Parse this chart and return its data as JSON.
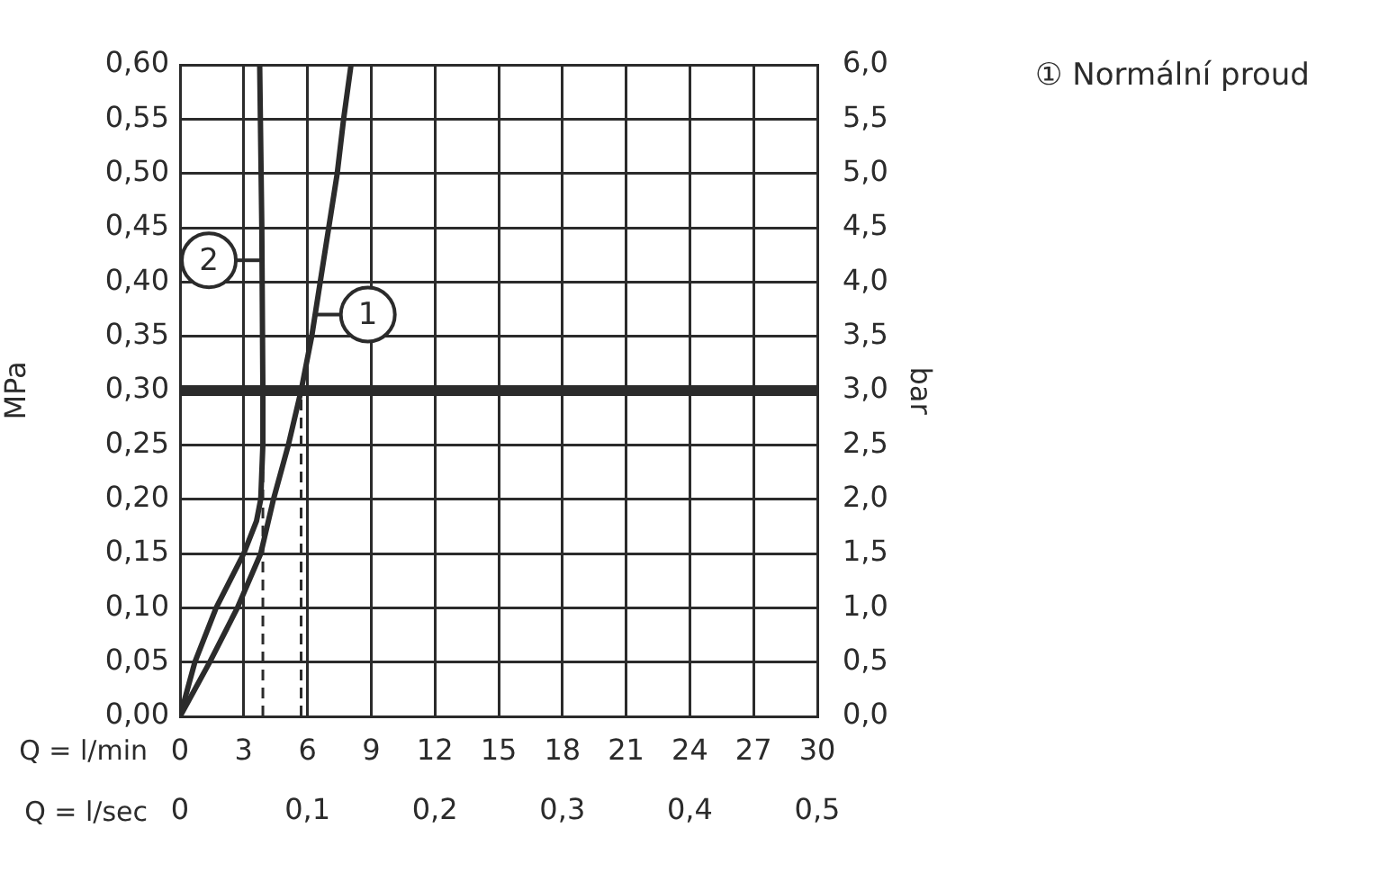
{
  "chart_data": {
    "type": "line",
    "xlabel": "Q = l/min",
    "x2label": "Q = l/sec",
    "ylabel": "MPa",
    "y2label": "bar",
    "xlim": [
      0,
      30
    ],
    "xticks": [
      0,
      3,
      6,
      9,
      12,
      15,
      18,
      21,
      24,
      27,
      30
    ],
    "x2lim": [
      0,
      0.5
    ],
    "x2ticks": [
      {
        "value": 0,
        "label": "0"
      },
      {
        "value": 0.1,
        "label": "0,1"
      },
      {
        "value": 0.2,
        "label": "0,2"
      },
      {
        "value": 0.3,
        "label": "0,3"
      },
      {
        "value": 0.4,
        "label": "0,4"
      },
      {
        "value": 0.5,
        "label": "0,5"
      }
    ],
    "ylim": [
      0,
      0.6
    ],
    "yticks": [
      {
        "value": 0,
        "label": "0,00"
      },
      {
        "value": 0.05,
        "label": "0,05"
      },
      {
        "value": 0.1,
        "label": "0,10"
      },
      {
        "value": 0.15,
        "label": "0,15"
      },
      {
        "value": 0.2,
        "label": "0,20"
      },
      {
        "value": 0.25,
        "label": "0,25"
      },
      {
        "value": 0.3,
        "label": "0,30"
      },
      {
        "value": 0.35,
        "label": "0,35"
      },
      {
        "value": 0.4,
        "label": "0,40"
      },
      {
        "value": 0.45,
        "label": "0,45"
      },
      {
        "value": 0.5,
        "label": "0,50"
      },
      {
        "value": 0.55,
        "label": "0,55"
      },
      {
        "value": 0.6,
        "label": "0,60"
      }
    ],
    "y2lim": [
      0,
      6
    ],
    "y2ticks": [
      {
        "value": 0,
        "label": "0,0"
      },
      {
        "value": 0.5,
        "label": "0,5"
      },
      {
        "value": 1,
        "label": "1,0"
      },
      {
        "value": 1.5,
        "label": "1,5"
      },
      {
        "value": 2,
        "label": "2,0"
      },
      {
        "value": 2.5,
        "label": "2,5"
      },
      {
        "value": 3,
        "label": "3,0"
      },
      {
        "value": 3.5,
        "label": "3,5"
      },
      {
        "value": 4,
        "label": "4,0"
      },
      {
        "value": 4.5,
        "label": "4,5"
      },
      {
        "value": 5,
        "label": "5,0"
      },
      {
        "value": 5.5,
        "label": "5,5"
      },
      {
        "value": 6,
        "label": "6,0"
      }
    ],
    "grid": true,
    "legend": "right",
    "marker": "none",
    "series": [
      {
        "name": "① Normální proud",
        "color": "#2b2b2b",
        "x": [
          0,
          1.4,
          2.7,
          3.8,
          4.4,
          5.1,
          5.7,
          6.2,
          6.6,
          7.0,
          7.4,
          7.7,
          8.05
        ],
        "values": [
          0,
          0.05,
          0.1,
          0.15,
          0.2,
          0.25,
          0.3,
          0.35,
          0.4,
          0.45,
          0.5,
          0.55,
          0.6
        ]
      },
      {
        "color": "#2b2b2b",
        "x": [
          0,
          0.7,
          1.7,
          3.0,
          3.6,
          3.8,
          3.9,
          3.9,
          3.85,
          3.75
        ],
        "values": [
          0,
          0.05,
          0.1,
          0.15,
          0.18,
          0.2,
          0.25,
          0.3,
          0.45,
          0.6
        ]
      },
      {
        "type": "line",
        "color": "#2b2b2b",
        "line_style": "dashed",
        "x": [
          5.7,
          5.7
        ],
        "values": [
          0,
          0.3
        ]
      },
      {
        "type": "line",
        "color": "#2b2b2b",
        "line_style": "dashed",
        "x": [
          3.9,
          3.9
        ],
        "values": [
          0,
          0.3
        ]
      }
    ],
    "ref_lines": [
      {
        "axis": "y",
        "value": 0.3,
        "color": "#2b2b2b"
      }
    ],
    "annotations": [
      {
        "text": "1",
        "x": 6.3,
        "y": 0.37
      },
      {
        "text": "2",
        "x": 3.9,
        "y": 0.42
      }
    ]
  }
}
